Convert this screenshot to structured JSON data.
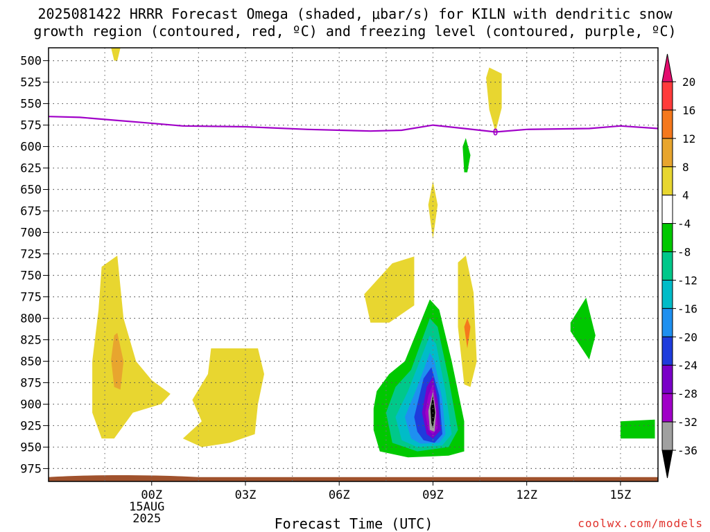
{
  "header": {
    "title_line1": "2025081422 HRRR Forecast Omega (shaded, μbar/s) for KILN with dendritic snow",
    "title_line2": "growth region (contoured, red, ºC) and freezing level (contoured, purple, ºC)"
  },
  "footer": {
    "xlabel": "Forecast Time (UTC)",
    "credit": "coolwx.com/models"
  },
  "chart_data": {
    "type": "contour",
    "y_axis": {
      "quantity": "pressure",
      "inverted": true,
      "range": [
        485,
        990
      ],
      "ticks": [
        500,
        525,
        550,
        575,
        600,
        625,
        650,
        675,
        700,
        725,
        750,
        775,
        800,
        825,
        850,
        875,
        900,
        925,
        950,
        975
      ]
    },
    "x_axis": {
      "range": [
        -3.3,
        16.2
      ],
      "ticks": [
        {
          "value": 0,
          "label": "00Z",
          "label2": "15AUG",
          "label3": "2025"
        },
        {
          "value": 3,
          "label": "03Z"
        },
        {
          "value": 6,
          "label": "06Z"
        },
        {
          "value": 9,
          "label": "09Z"
        },
        {
          "value": 12,
          "label": "12Z"
        },
        {
          "value": 15,
          "label": "15Z"
        }
      ],
      "gridlines": [
        -1.5,
        0,
        1.5,
        3,
        4.5,
        6,
        7.5,
        9,
        10.5,
        12,
        13.5,
        15
      ]
    },
    "grid": true,
    "colorbar": {
      "placement": "right",
      "labels": [
        "20",
        "16",
        "12",
        "8",
        "4",
        "-4",
        "-8",
        "-12",
        "-16",
        "-20",
        "-24",
        "-28",
        "-32",
        "-36"
      ],
      "colors": [
        "#e30d6e",
        "#ff3b3b",
        "#f5781c",
        "#e8a52e",
        "#e8d630",
        "#ffffff",
        "#00c800",
        "#00c88a",
        "#00bcc8",
        "#1e90f0",
        "#1e3cdc",
        "#7a00c8",
        "#a000c8",
        "#a0a0a0",
        "#000000"
      ]
    },
    "freezing_level": {
      "label": "0",
      "color": "#a000c8",
      "points": [
        [
          -3.3,
          565
        ],
        [
          -2.3,
          566
        ],
        [
          -1.3,
          569
        ],
        [
          -0.3,
          572
        ],
        [
          1,
          576
        ],
        [
          3,
          577
        ],
        [
          5,
          580
        ],
        [
          7,
          582
        ],
        [
          8,
          581
        ],
        [
          9,
          575
        ],
        [
          10,
          579
        ],
        [
          11,
          583
        ],
        [
          12,
          580
        ],
        [
          14,
          579
        ],
        [
          15,
          576
        ],
        [
          16.2,
          579
        ]
      ]
    },
    "terrain": {
      "color": "#a0522d",
      "top_pressure": 983,
      "bottom_pressure": 990
    },
    "omega_regions": [
      {
        "level": 4,
        "color": "#e8d630",
        "points": [
          [
            -1.3,
            485
          ],
          [
            -1.0,
            485
          ],
          [
            -1.1,
            500
          ],
          [
            -1.2,
            500
          ]
        ]
      },
      {
        "level": 4,
        "color": "#e8d630",
        "points": [
          [
            -1.6,
            740
          ],
          [
            -1.1,
            727
          ],
          [
            -0.9,
            800
          ],
          [
            -0.5,
            850
          ],
          [
            0,
            872
          ],
          [
            0.6,
            888
          ],
          [
            0.3,
            900
          ],
          [
            -0.6,
            910
          ],
          [
            -1.2,
            940
          ],
          [
            -1.6,
            940
          ],
          [
            -1.9,
            910
          ],
          [
            -1.9,
            850
          ],
          [
            -1.7,
            790
          ]
        ]
      },
      {
        "level": 8,
        "color": "#e8a52e",
        "points": [
          [
            -1.1,
            817
          ],
          [
            -0.9,
            850
          ],
          [
            -1.0,
            883
          ],
          [
            -1.2,
            880
          ],
          [
            -1.3,
            848
          ],
          [
            -1.2,
            820
          ]
        ]
      },
      {
        "level": 4,
        "color": "#e8d630",
        "points": [
          [
            1.9,
            835
          ],
          [
            3.4,
            835
          ],
          [
            3.6,
            865
          ],
          [
            3.4,
            900
          ],
          [
            3.3,
            935
          ],
          [
            2.5,
            945
          ],
          [
            1.6,
            950
          ],
          [
            1.0,
            940
          ],
          [
            1.6,
            920
          ],
          [
            1.3,
            895
          ],
          [
            1.8,
            865
          ]
        ]
      },
      {
        "level": 4,
        "color": "#e8d630",
        "points": [
          [
            6.8,
            772
          ],
          [
            7.7,
            736
          ],
          [
            8.4,
            728
          ],
          [
            8.4,
            785
          ],
          [
            7.6,
            805
          ],
          [
            7.0,
            805
          ]
        ]
      },
      {
        "level": 4,
        "color": "#e8d630",
        "points": [
          [
            10.8,
            508
          ],
          [
            11.2,
            515
          ],
          [
            11.2,
            555
          ],
          [
            11.0,
            583
          ],
          [
            10.8,
            557
          ],
          [
            10.7,
            520
          ]
        ]
      },
      {
        "level": 4,
        "color": "#e8d630",
        "points": [
          [
            8.85,
            668
          ],
          [
            9.0,
            640
          ],
          [
            9.15,
            668
          ],
          [
            9.0,
            708
          ]
        ]
      },
      {
        "level": 4,
        "color": "#e8d630",
        "points": [
          [
            9.8,
            735
          ],
          [
            10.05,
            727
          ],
          [
            10.3,
            770
          ],
          [
            10.4,
            850
          ],
          [
            10.2,
            880
          ],
          [
            10.0,
            877
          ],
          [
            9.8,
            810
          ]
        ]
      },
      {
        "level": 8,
        "color": "#f5781c",
        "points": [
          [
            10.0,
            810
          ],
          [
            10.1,
            800
          ],
          [
            10.2,
            810
          ],
          [
            10.1,
            835
          ]
        ]
      },
      {
        "level": -4,
        "color": "#00c800",
        "points": [
          [
            9.95,
            600
          ],
          [
            10.05,
            590
          ],
          [
            10.2,
            610
          ],
          [
            10.1,
            630
          ],
          [
            10.0,
            630
          ]
        ]
      },
      {
        "level": -4,
        "color": "#00c800",
        "points": [
          [
            13.4,
            805
          ],
          [
            13.9,
            776
          ],
          [
            14.2,
            820
          ],
          [
            14.0,
            848
          ],
          [
            13.4,
            815
          ]
        ]
      },
      {
        "level": -4,
        "color": "#00c800",
        "points": [
          [
            15.0,
            920
          ],
          [
            16.1,
            918
          ],
          [
            16.1,
            940
          ],
          [
            15.0,
            940
          ]
        ]
      },
      {
        "level": -4,
        "color": "#00c800",
        "points": [
          [
            7.1,
            905
          ],
          [
            7.2,
            885
          ],
          [
            7.6,
            865
          ],
          [
            8.1,
            850
          ],
          [
            8.9,
            778
          ],
          [
            9.2,
            790
          ],
          [
            9.6,
            850
          ],
          [
            10.0,
            920
          ],
          [
            10.0,
            955
          ],
          [
            9.5,
            960
          ],
          [
            8.2,
            962
          ],
          [
            7.3,
            955
          ],
          [
            7.1,
            930
          ]
        ]
      },
      {
        "level": -8,
        "color": "#00c88a",
        "points": [
          [
            7.5,
            910
          ],
          [
            7.8,
            880
          ],
          [
            8.3,
            860
          ],
          [
            8.9,
            800
          ],
          [
            9.15,
            810
          ],
          [
            9.5,
            870
          ],
          [
            9.8,
            930
          ],
          [
            9.5,
            950
          ],
          [
            8.5,
            955
          ],
          [
            7.7,
            945
          ]
        ]
      },
      {
        "level": -12,
        "color": "#00bcc8",
        "points": [
          [
            7.8,
            915
          ],
          [
            8.2,
            885
          ],
          [
            8.9,
            820
          ],
          [
            9.1,
            830
          ],
          [
            9.4,
            885
          ],
          [
            9.6,
            935
          ],
          [
            9.3,
            948
          ],
          [
            8.5,
            950
          ],
          [
            8.0,
            942
          ]
        ]
      },
      {
        "level": -16,
        "color": "#1e90f0",
        "points": [
          [
            8.1,
            915
          ],
          [
            8.5,
            880
          ],
          [
            8.9,
            840
          ],
          [
            9.05,
            850
          ],
          [
            9.3,
            895
          ],
          [
            9.4,
            935
          ],
          [
            9.2,
            945
          ],
          [
            8.6,
            946
          ],
          [
            8.3,
            940
          ]
        ]
      },
      {
        "level": -20,
        "color": "#1e3cdc",
        "points": [
          [
            8.4,
            915
          ],
          [
            8.7,
            870
          ],
          [
            8.95,
            857
          ],
          [
            9.2,
            890
          ],
          [
            9.3,
            935
          ],
          [
            9.05,
            945
          ],
          [
            8.7,
            942
          ],
          [
            8.5,
            932
          ]
        ]
      },
      {
        "level": -24,
        "color": "#7a00c8",
        "points": [
          [
            8.65,
            910
          ],
          [
            8.8,
            880
          ],
          [
            9.0,
            868
          ],
          [
            9.15,
            895
          ],
          [
            9.25,
            930
          ],
          [
            9.0,
            940
          ],
          [
            8.8,
            935
          ]
        ]
      },
      {
        "level": -28,
        "color": "#a000c8",
        "points": [
          [
            8.75,
            910
          ],
          [
            8.85,
            890
          ],
          [
            9.0,
            877
          ],
          [
            9.1,
            900
          ],
          [
            9.15,
            928
          ],
          [
            9.0,
            935
          ],
          [
            8.85,
            930
          ]
        ]
      },
      {
        "level": -32,
        "color": "#a0a0a0",
        "points": [
          [
            8.85,
            908
          ],
          [
            9.0,
            885
          ],
          [
            9.1,
            910
          ],
          [
            9.05,
            932
          ],
          [
            8.9,
            930
          ]
        ]
      },
      {
        "level": -36,
        "color": "#000000",
        "points": [
          [
            8.92,
            905
          ],
          [
            9.0,
            890
          ],
          [
            9.07,
            910
          ],
          [
            9.0,
            928
          ],
          [
            8.95,
            922
          ]
        ]
      }
    ]
  }
}
